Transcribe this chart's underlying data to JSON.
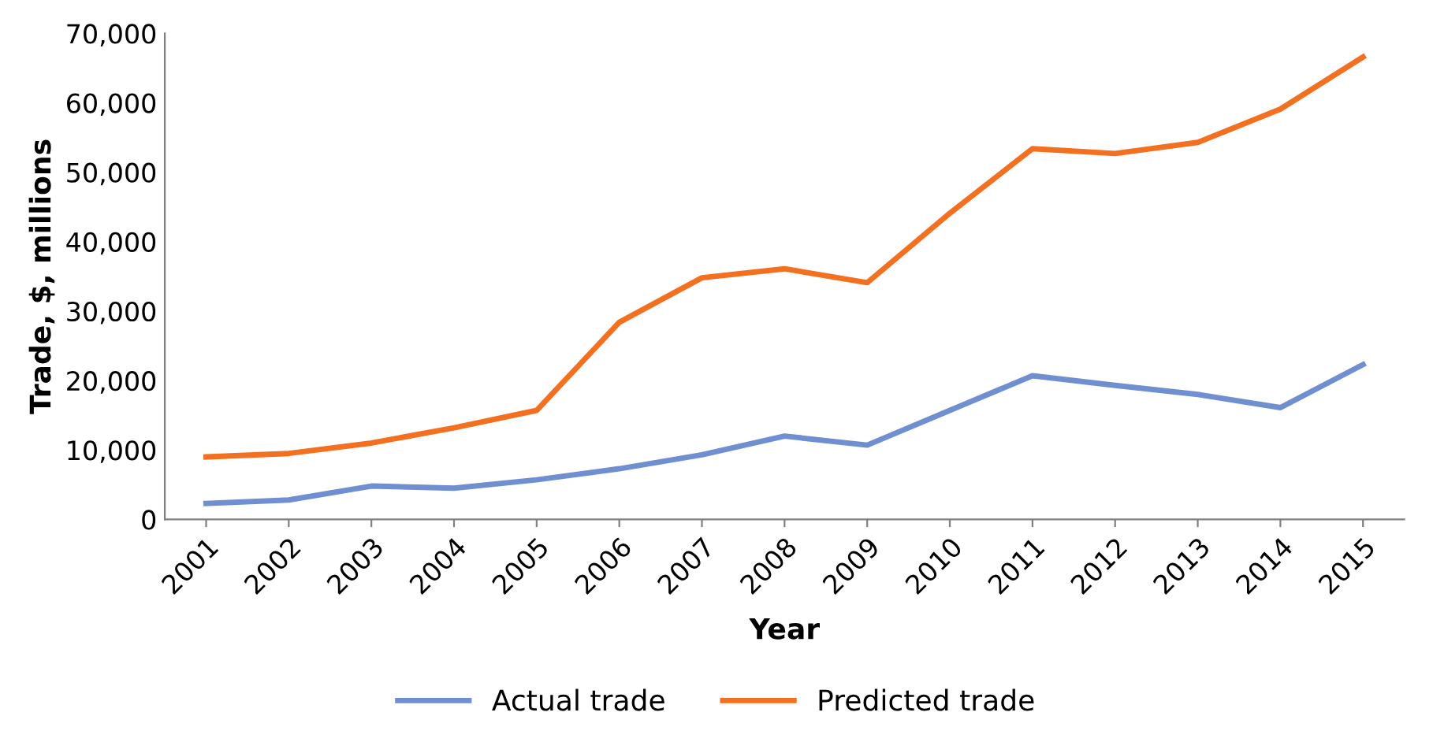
{
  "chart_data": {
    "type": "line",
    "xlabel": "Year",
    "ylabel": "Trade, $, millions",
    "categories": [
      "2001",
      "2002",
      "2003",
      "2004",
      "2005",
      "2006",
      "2007",
      "2008",
      "2009",
      "2010",
      "2011",
      "2012",
      "2013",
      "2014",
      "2015"
    ],
    "series": [
      {
        "name": "Actual trade",
        "color": "#6f8fd1",
        "values": [
          2300,
          2800,
          4800,
          4500,
          5700,
          7300,
          9300,
          12000,
          10700,
          15700,
          20700,
          19300,
          18000,
          16100,
          22300
        ]
      },
      {
        "name": "Predicted trade",
        "color": "#f37021",
        "values": [
          9000,
          9500,
          11000,
          13200,
          15700,
          28400,
          34800,
          36100,
          34100,
          44100,
          53400,
          52700,
          54300,
          59100,
          66600
        ]
      }
    ],
    "ylim": [
      0,
      70000
    ],
    "yticks": [
      0,
      {
        "value": 10000,
        "label": "10,000"
      },
      {
        "value": 20000,
        "label": "20,000"
      },
      {
        "value": 30000,
        "label": "30,000"
      },
      {
        "value": 40000,
        "label": "40,000"
      },
      {
        "value": 50000,
        "label": "50,000"
      },
      {
        "value": 60000,
        "label": "60,000"
      },
      {
        "value": 70000,
        "label": "70,000"
      }
    ],
    "grid": false,
    "legend": "bottom",
    "marker": "none",
    "line_style": "solid"
  }
}
